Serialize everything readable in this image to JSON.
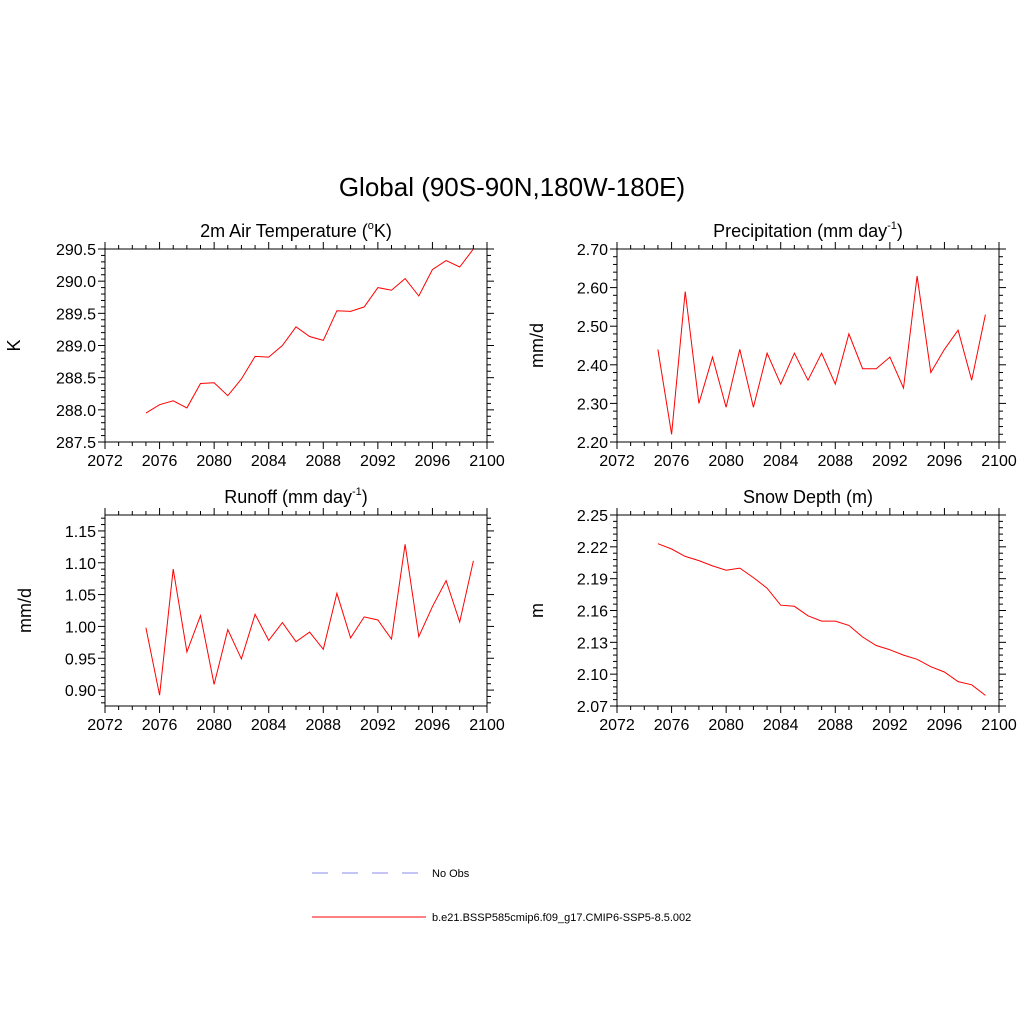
{
  "title": "Global (90S-90N,180W-180E)",
  "colors": {
    "series": "#ff0000",
    "obs": "#8888ee",
    "axis": "#000000"
  },
  "legend": {
    "obs_label": "No Obs",
    "model_label": "b.e21.BSSP585cmip6.f09_g17.CMIP6-SSP5-8.5.002"
  },
  "chart_data": [
    {
      "type": "line",
      "title_main": "2m Air Temperature (",
      "title_sup": "o",
      "title_post": "K)",
      "ylabel": "K",
      "xlim": [
        2072,
        2100
      ],
      "ylim": [
        287.5,
        290.5
      ],
      "x_ticks": [
        2072,
        2076,
        2080,
        2084,
        2088,
        2092,
        2096,
        2100
      ],
      "y_ticks": [
        "287.5",
        "288.0",
        "288.5",
        "289.0",
        "289.5",
        "290.0",
        "290.5"
      ],
      "x": [
        2075,
        2076,
        2077,
        2078,
        2079,
        2080,
        2081,
        2082,
        2083,
        2084,
        2085,
        2086,
        2087,
        2088,
        2089,
        2090,
        2091,
        2092,
        2093,
        2094,
        2095,
        2096,
        2097,
        2098,
        2099
      ],
      "values": [
        287.95,
        288.08,
        288.14,
        288.03,
        288.41,
        288.42,
        288.22,
        288.48,
        288.83,
        288.82,
        289.0,
        289.29,
        289.14,
        289.08,
        289.54,
        289.53,
        289.6,
        289.9,
        289.86,
        290.04,
        289.77,
        290.18,
        290.32,
        290.22,
        290.5
      ]
    },
    {
      "type": "line",
      "title_main": "Precipitation (mm day",
      "title_sup": "-1",
      "title_post": ")",
      "ylabel": "mm/d",
      "xlim": [
        2072,
        2100
      ],
      "ylim": [
        2.2,
        2.7
      ],
      "x_ticks": [
        2072,
        2076,
        2080,
        2084,
        2088,
        2092,
        2096,
        2100
      ],
      "y_ticks": [
        "2.20",
        "2.30",
        "2.40",
        "2.50",
        "2.60",
        "2.70"
      ],
      "x": [
        2075,
        2076,
        2077,
        2078,
        2079,
        2080,
        2081,
        2082,
        2083,
        2084,
        2085,
        2086,
        2087,
        2088,
        2089,
        2090,
        2091,
        2092,
        2093,
        2094,
        2095,
        2096,
        2097,
        2098,
        2099
      ],
      "values": [
        2.44,
        2.22,
        2.59,
        2.3,
        2.42,
        2.29,
        2.44,
        2.29,
        2.43,
        2.35,
        2.43,
        2.36,
        2.43,
        2.35,
        2.48,
        2.39,
        2.39,
        2.42,
        2.34,
        2.63,
        2.38,
        2.44,
        2.49,
        2.36,
        2.53
      ]
    },
    {
      "type": "line",
      "title_main": "Runoff (mm day",
      "title_sup": "-1",
      "title_post": ")",
      "ylabel": "mm/d",
      "xlim": [
        2072,
        2100
      ],
      "ylim": [
        0.875,
        1.175
      ],
      "x_ticks": [
        2072,
        2076,
        2080,
        2084,
        2088,
        2092,
        2096,
        2100
      ],
      "y_ticks": [
        "0.90",
        "0.95",
        "1.00",
        "1.05",
        "1.10",
        "1.15"
      ],
      "y_tick_values": [
        0.9,
        0.95,
        1.0,
        1.05,
        1.1,
        1.15
      ],
      "x": [
        2075,
        2076,
        2077,
        2078,
        2079,
        2080,
        2081,
        2082,
        2083,
        2084,
        2085,
        2086,
        2087,
        2088,
        2089,
        2090,
        2091,
        2092,
        2093,
        2094,
        2095,
        2096,
        2097,
        2098,
        2099
      ],
      "values": [
        0.998,
        0.892,
        1.09,
        0.96,
        1.017,
        0.909,
        0.995,
        0.949,
        1.019,
        0.978,
        1.006,
        0.976,
        0.991,
        0.964,
        1.052,
        0.982,
        1.015,
        1.01,
        0.98,
        1.129,
        0.984,
        1.031,
        1.072,
        1.007,
        1.103
      ]
    },
    {
      "type": "line",
      "title_main": "Snow Depth (m)",
      "title_sup": "",
      "title_post": "",
      "ylabel": "m",
      "xlim": [
        2072,
        2100
      ],
      "ylim": [
        2.07,
        2.25
      ],
      "x_ticks": [
        2072,
        2076,
        2080,
        2084,
        2088,
        2092,
        2096,
        2100
      ],
      "y_ticks": [
        "2.07",
        "2.10",
        "2.13",
        "2.16",
        "2.19",
        "2.22",
        "2.25"
      ],
      "x": [
        2075,
        2076,
        2077,
        2078,
        2079,
        2080,
        2081,
        2082,
        2083,
        2084,
        2085,
        2086,
        2087,
        2088,
        2089,
        2090,
        2091,
        2092,
        2093,
        2094,
        2095,
        2096,
        2097,
        2098,
        2099
      ],
      "values": [
        2.223,
        2.218,
        2.211,
        2.207,
        2.202,
        2.198,
        2.2,
        2.191,
        2.181,
        2.165,
        2.164,
        2.155,
        2.15,
        2.15,
        2.146,
        2.135,
        2.127,
        2.123,
        2.118,
        2.114,
        2.107,
        2.102,
        2.093,
        2.09,
        2.08
      ]
    }
  ]
}
